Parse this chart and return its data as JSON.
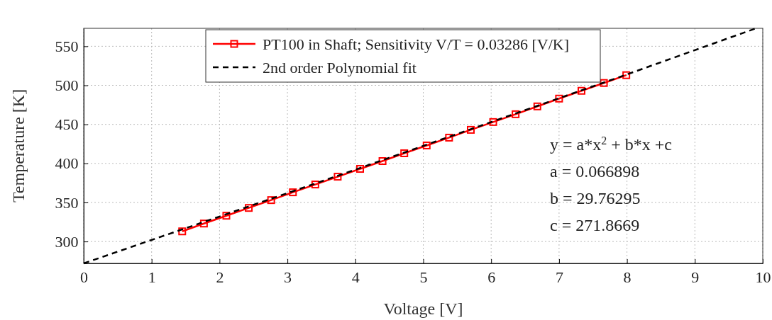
{
  "chart_data": {
    "type": "line",
    "xlabel": "Voltage [V]",
    "ylabel": "Temperature [K]",
    "xlim": [
      0,
      10
    ],
    "xticks": [
      0,
      1,
      2,
      3,
      4,
      5,
      6,
      7,
      8,
      9,
      10
    ],
    "ylim": [
      272,
      573
    ],
    "yticks": [
      300,
      350,
      400,
      450,
      500,
      550
    ],
    "grid": true,
    "legend": "top",
    "series": [
      {
        "name": "PT100 in Shaft; Sensitivity V/T = 0.03286 [V/K]",
        "color": "#ff0000",
        "marker": "square",
        "line_style": "solid",
        "x": [
          1.45,
          1.77,
          2.1,
          2.43,
          2.76,
          3.08,
          3.41,
          3.74,
          4.07,
          4.4,
          4.72,
          5.05,
          5.38,
          5.7,
          6.03,
          6.36,
          6.68,
          7.0,
          7.33,
          7.66,
          7.99
        ],
        "values": [
          313,
          323,
          333,
          343,
          353,
          363,
          373,
          383,
          393,
          403,
          413,
          423,
          433,
          443,
          453,
          463,
          473,
          483,
          493,
          503,
          513
        ]
      },
      {
        "name": "2nd order Polynomial fit",
        "color": "#000000",
        "marker": "none",
        "line_style": "dashed",
        "x": [
          0,
          2,
          4,
          6,
          8,
          9.9
        ],
        "values": [
          272,
          332,
          392,
          453,
          514,
          573
        ]
      }
    ],
    "annotations": [
      "y = a*x$^{2}$ + b*x +c",
      "a = 0.066898",
      "b = 29.76295",
      "c = 271.8669"
    ]
  }
}
